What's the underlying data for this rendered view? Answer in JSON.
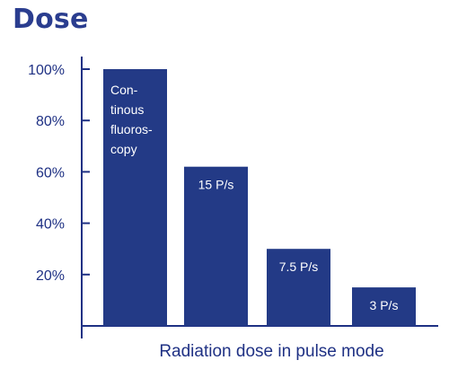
{
  "chart_data": {
    "type": "bar",
    "title": "Dose",
    "xlabel": "Radiation dose in pulse mode",
    "ylabel": "",
    "ylim": [
      0,
      100
    ],
    "yticks": [
      "100%",
      "80%",
      "60%",
      "40%",
      "20%"
    ],
    "yticks_values": [
      100,
      80,
      60,
      40,
      20
    ],
    "categories": [
      "Con- tinous fluoros- copy",
      "15 P/s",
      "7.5 P/s",
      "3 P/s"
    ],
    "bar_label_lines": [
      [
        "Con-",
        "tinous",
        "fluoros-",
        "copy"
      ],
      [
        "15 P/s"
      ],
      [
        "7.5 P/s"
      ],
      [
        "3 P/s"
      ]
    ],
    "values": [
      100,
      62,
      30,
      15
    ],
    "grid": false,
    "colors": {
      "bar": "#233a86",
      "text": "#1f3184",
      "axis": "#1f3184"
    }
  }
}
